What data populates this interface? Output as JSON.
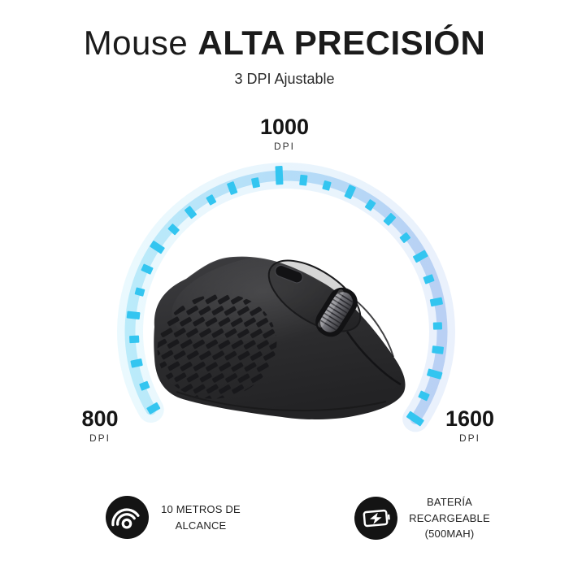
{
  "header": {
    "title_light": "Mouse ",
    "title_bold": "ALTA PRECISIÓN",
    "subtitle": "3 DPI Ajustable"
  },
  "gauge": {
    "type": "dpi-gauge",
    "tick_count": 28,
    "start_angle": 210,
    "end_angle": -34,
    "color_start": "#33c5f0",
    "color_mid": "#1f97e9",
    "color_end": "#2f6edc",
    "labels": {
      "top": {
        "value": "1000",
        "unit": "DPI"
      },
      "left": {
        "value": "800",
        "unit": "DPI"
      },
      "right": {
        "value": "1600",
        "unit": "DPI"
      }
    }
  },
  "features": [
    {
      "icon": "wireless-range-icon",
      "lines": [
        "10 METROS DE",
        "ALCANCE"
      ]
    },
    {
      "icon": "rechargeable-battery-icon",
      "lines": [
        "BATERÍA",
        "RECARGEABLE",
        "(500MAH)"
      ]
    }
  ]
}
